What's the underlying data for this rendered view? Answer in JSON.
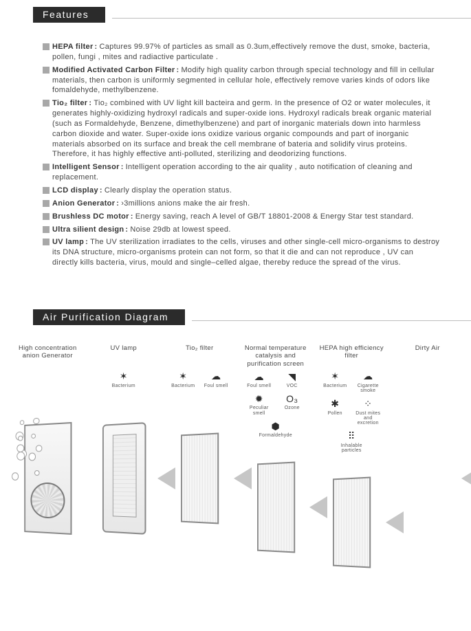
{
  "headers": {
    "features": "Features",
    "diagram": "Air Purification Diagram"
  },
  "features": [
    {
      "label": "HEPA filter",
      "body": "Captures 99.97% of particles as small as 0.3um,effectively remove the dust, smoke, bacteria, pollen, fungi , mites and radiactive particulate ."
    },
    {
      "label": "Modified Activated Carbon Filter",
      "body": "Modify high quality carbon through special technology and fill in cellular materials, then carbon is uniformly segmented in cellular hole, effectively remove varies kinds of odors like fomaldehyde, methylbenzene."
    },
    {
      "label": "Tio₂ filter",
      "body": "Tio₂ combined with UV light kill bacteira and germ. In the presence of O2 or water molecules, it generates highly-oxidizing hydroxyl radicals and super-oxide ions. Hydroxyl radicals break organic material (such as Formaldehyde, Benzene, dimethylbenzene) and part of inorganic materials down into harmless carbon dioxide and water. Super-oxide ions oxidize various organic compounds and part of inorganic materials absorbed on its surface and break the cell membrane of bateria and solidify virus proteins. Therefore, it has highly effective anti-polluted, sterilizing and deodorizing functions."
    },
    {
      "label": "Intelligent Sensor",
      "body": "Intelligent operation according to the air quality , auto notification of cleaning and replacement."
    },
    {
      "label": "LCD display",
      "body": "Clearly display the operation status."
    },
    {
      "label": "Anion Generator",
      "body": "›3millions anions make the air fresh."
    },
    {
      "label": "Brushless DC motor",
      "body": "Energy saving, reach A level of GB/T 18801-2008 & Energy Star test standard."
    },
    {
      "label": "Ultra silient design",
      "body": "Noise 29db at lowest speed."
    },
    {
      "label": "UV lamp",
      "body": "The UV sterilization irradiates to the cells, viruses and other single-cell micro-organisms to destroy its DNA structure, micro-organisms protein can not form, so that it die and can not reproduce , UV can directly kills bacteria, virus, mould and single–celled algae, thereby reduce the spread of the virus."
    }
  ],
  "stages": [
    {
      "title": "High concentration anion Generator",
      "icons": []
    },
    {
      "title": "UV lamp",
      "icons": [
        {
          "glyph": "✶",
          "cap": "Bacterium"
        }
      ]
    },
    {
      "title": "Tio₂ filter",
      "icons": [
        {
          "glyph": "✶",
          "cap": "Bacterium"
        },
        {
          "glyph": "☁",
          "cap": "Foul smell"
        }
      ]
    },
    {
      "title": "Normal temperature catalysis and purification screen",
      "icons": [
        {
          "glyph": "☁",
          "cap": "Foul smell"
        },
        {
          "glyph": "◥",
          "cap": "VOC"
        },
        {
          "glyph": "✹",
          "cap": "Peculiar smell"
        },
        {
          "glyph": "O₃",
          "cap": "Ozone"
        },
        {
          "glyph": "⬢",
          "cap": "Formaldehyde"
        }
      ]
    },
    {
      "title": "HEPA high efficiency filter",
      "icons": [
        {
          "glyph": "✶",
          "cap": "Bacterium"
        },
        {
          "glyph": "☁",
          "cap": "Cigarette smoke"
        },
        {
          "glyph": "✱",
          "cap": "Pollen"
        },
        {
          "glyph": "⁘",
          "cap": "Dust mites and excretion"
        },
        {
          "glyph": "⠿",
          "cap": "Inhalable particles"
        }
      ]
    },
    {
      "title": "Dirty Air",
      "icons": []
    }
  ],
  "colors": {
    "header_bg": "#2b2b2b",
    "header_fg": "#ffffff",
    "bullet": "#a8a8a8",
    "text": "#3a3a3a",
    "arrow": "#bcbcbc"
  }
}
